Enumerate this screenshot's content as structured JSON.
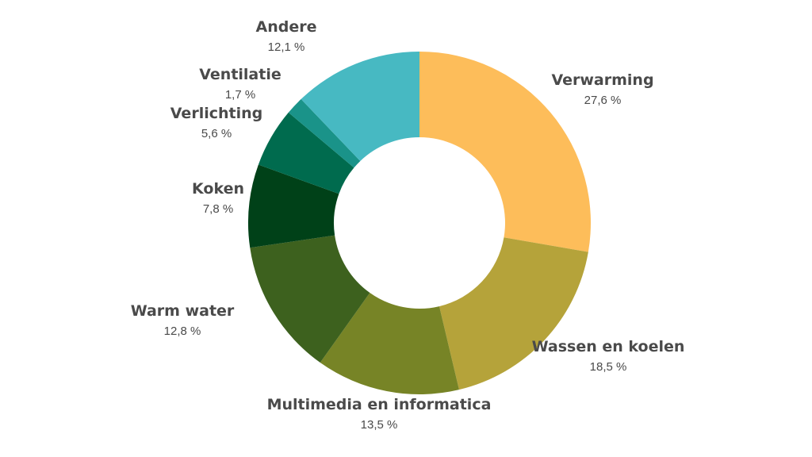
{
  "chart_data": {
    "type": "donut",
    "title": "",
    "slices": [
      {
        "label": "Verwarming",
        "value": 27.6,
        "value_label": "27,6 %",
        "color": "#FDBD5A"
      },
      {
        "label": "Wassen en koelen",
        "value": 18.5,
        "value_label": "18,5 %",
        "color": "#B5A33A"
      },
      {
        "label": "Multimedia en informatica",
        "value": 13.5,
        "value_label": "13,5 %",
        "color": "#778426"
      },
      {
        "label": "Warm water",
        "value": 12.8,
        "value_label": "12,8 %",
        "color": "#3D611E"
      },
      {
        "label": "Koken",
        "value": 7.8,
        "value_label": "7,8 %",
        "color": "#004118"
      },
      {
        "label": "Verlichting",
        "value": 5.6,
        "value_label": "5,6 %",
        "color": "#006B4E"
      },
      {
        "label": "Ventilatie",
        "value": 1.7,
        "value_label": "1,7 %",
        "color": "#1A9389"
      },
      {
        "label": "Andere",
        "value": 12.1,
        "value_label": "12,1 %",
        "color": "#47B9C2"
      }
    ],
    "start_angle_deg": 0,
    "direction": "clockwise"
  }
}
